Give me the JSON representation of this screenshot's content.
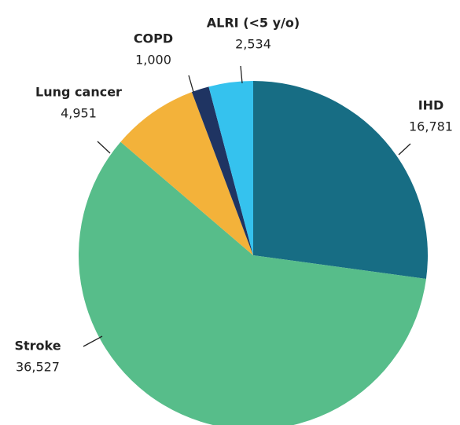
{
  "chart_data": {
    "type": "pie",
    "categories": [
      "IHD",
      "Stroke",
      "Lung cancer",
      "COPD",
      "ALRI (<5 y/o)"
    ],
    "values": [
      16781,
      36527,
      4951,
      1000,
      2534
    ],
    "value_labels": [
      "16,781",
      "36,527",
      "4,951",
      "1,000",
      "2,534"
    ],
    "colors": [
      "#176d84",
      "#57bd8a",
      "#f3b23a",
      "#1f3462",
      "#35c2ee"
    ]
  }
}
